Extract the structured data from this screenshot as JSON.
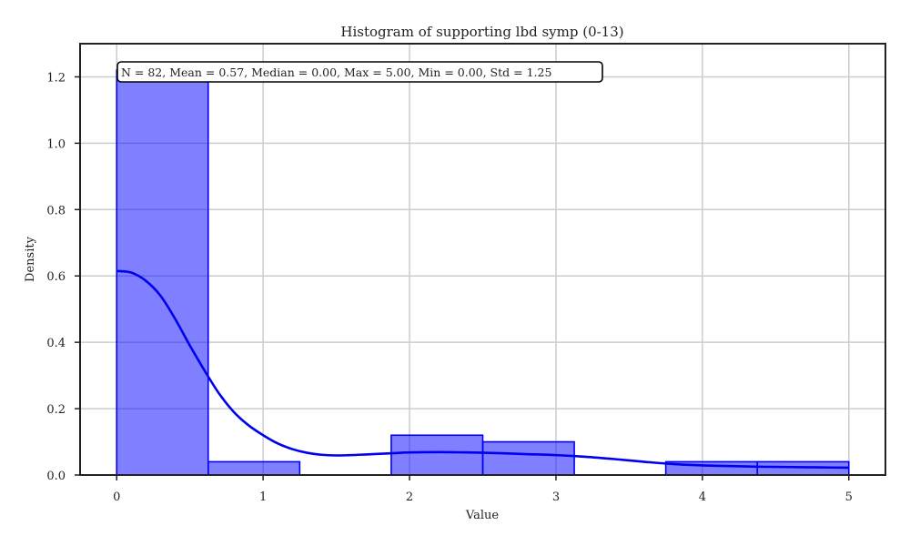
{
  "chart_data": {
    "type": "bar",
    "title": "Histogram of supporting lbd symp (0-13)",
    "xlabel": "Value",
    "ylabel": "Density",
    "xlim": [
      -0.25,
      5.25
    ],
    "ylim": [
      0,
      1.3
    ],
    "xticks": [
      0,
      1,
      2,
      3,
      4,
      5
    ],
    "yticks": [
      0.0,
      0.2,
      0.4,
      0.6,
      0.8,
      1.0,
      1.2
    ],
    "grid": true,
    "bar_color": "#0000ff",
    "line_color": "#0000ee",
    "bins": [
      {
        "x0": 0.0,
        "x1": 0.625,
        "density": 1.22
      },
      {
        "x0": 0.625,
        "x1": 1.25,
        "density": 0.04
      },
      {
        "x0": 1.25,
        "x1": 1.875,
        "density": 0.0
      },
      {
        "x0": 1.875,
        "x1": 2.5,
        "density": 0.12
      },
      {
        "x0": 2.5,
        "x1": 3.125,
        "density": 0.1
      },
      {
        "x0": 3.125,
        "x1": 3.75,
        "density": 0.0
      },
      {
        "x0": 3.75,
        "x1": 4.375,
        "density": 0.04
      },
      {
        "x0": 4.375,
        "x1": 5.0,
        "density": 0.04
      }
    ],
    "kde": {
      "x": [
        0.0,
        0.1,
        0.2,
        0.3,
        0.4,
        0.5,
        0.6,
        0.7,
        0.8,
        0.9,
        1.0,
        1.1,
        1.2,
        1.3,
        1.4,
        1.5,
        1.6,
        1.7,
        1.8,
        1.9,
        2.0,
        2.2,
        2.4,
        2.6,
        2.8,
        3.0,
        3.2,
        3.4,
        3.6,
        3.8,
        4.0,
        4.2,
        4.4,
        4.6,
        4.8,
        5.0
      ],
      "y": [
        0.615,
        0.61,
        0.585,
        0.54,
        0.47,
        0.39,
        0.315,
        0.245,
        0.19,
        0.15,
        0.12,
        0.095,
        0.078,
        0.067,
        0.061,
        0.059,
        0.06,
        0.062,
        0.064,
        0.066,
        0.068,
        0.069,
        0.068,
        0.066,
        0.063,
        0.06,
        0.055,
        0.048,
        0.04,
        0.033,
        0.029,
        0.027,
        0.025,
        0.024,
        0.023,
        0.022
      ]
    },
    "stats_text": "N = 82, Mean = 0.57, Median = 0.00, Max = 5.00, Min = 0.00, Std = 1.25",
    "stats_position": "top-left"
  }
}
